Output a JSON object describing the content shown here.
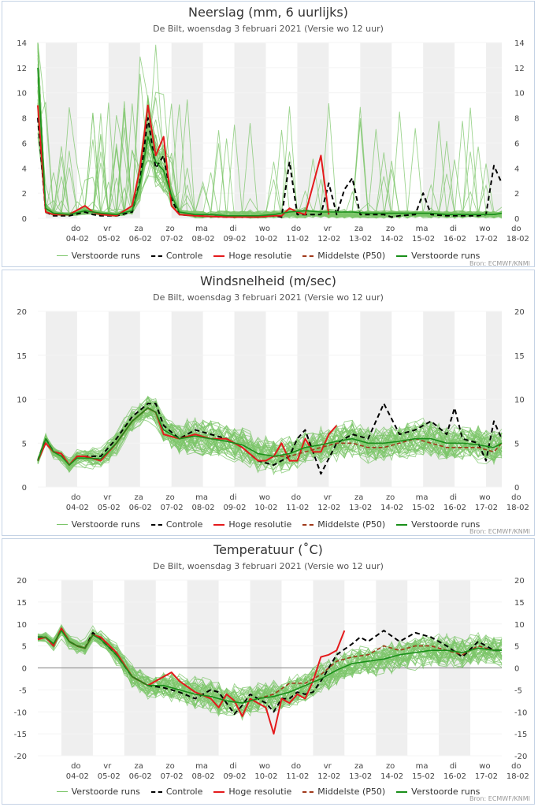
{
  "legend": {
    "items": [
      {
        "label": "Verstoorde runs",
        "color": "#7cc56a",
        "style": "solid-thin"
      },
      {
        "label": "Controle",
        "color": "#000000",
        "style": "dashed"
      },
      {
        "label": "Hoge resolutie",
        "color": "#e41a1c",
        "style": "solid"
      },
      {
        "label": "Middelste (P50)",
        "color": "#a0391a",
        "style": "dashed"
      },
      {
        "label": "Verstoorde runs",
        "color": "#1a8f1a",
        "style": "solid"
      }
    ]
  },
  "source": "Bron: ECMWF/KNMI",
  "chart_data": [
    {
      "type": "line",
      "title": "Neerslag (mm, 6 uurlijks)",
      "subtitle": "De Bilt, woensdag 3 februari 2021 (Versie wo 12 uur)",
      "x_ticks": [
        [
          "do",
          "04-02"
        ],
        [
          "vr",
          "05-02"
        ],
        [
          "za",
          "06-02"
        ],
        [
          "zo",
          "07-02"
        ],
        [
          "ma",
          "08-02"
        ],
        [
          "di",
          "09-02"
        ],
        [
          "wo",
          "10-02"
        ],
        [
          "do",
          "11-02"
        ],
        [
          "vr",
          "12-02"
        ],
        [
          "za",
          "13-02"
        ],
        [
          "zo",
          "14-02"
        ],
        [
          "ma",
          "15-02"
        ],
        [
          "di",
          "16-02"
        ],
        [
          "wo",
          "17-02"
        ],
        [
          "do",
          "18-02"
        ]
      ],
      "x_range_days": [
        0,
        14.75
      ],
      "ylim": [
        0,
        14
      ],
      "yticks": [
        0,
        2,
        4,
        6,
        8,
        10,
        12,
        14
      ],
      "zero_line": false,
      "series": [
        {
          "name": "Controle",
          "x": [
            0,
            0.25,
            0.5,
            1,
            1.5,
            1.75,
            2,
            2.5,
            3,
            3.25,
            3.5,
            3.75,
            4,
            4.25,
            4.5,
            5,
            6,
            7,
            7.5,
            7.75,
            8,
            8.25,
            8.5,
            9,
            9.25,
            9.5,
            9.75,
            10,
            10.25,
            10.5,
            11,
            11.25,
            11.5,
            12,
            12.25,
            12.5,
            13,
            13.25,
            13.5,
            14,
            14.25,
            14.5,
            14.75
          ],
          "values": [
            8,
            0.5,
            0.2,
            0.2,
            0.5,
            0.3,
            0.2,
            0.2,
            0.5,
            3,
            8,
            4,
            5,
            1.5,
            0.3,
            0.2,
            0.1,
            0.1,
            0.2,
            0.1,
            4.5,
            0.3,
            0.3,
            0.3,
            2.8,
            0.3,
            2.3,
            3.2,
            0.3,
            0.3,
            0.3,
            0.1,
            0.2,
            0.3,
            2,
            0.3,
            0.2,
            0.2,
            0.2,
            0.2,
            0.3,
            4.2,
            2.8
          ]
        },
        {
          "name": "Hoge resolutie",
          "x": [
            0,
            0.25,
            0.5,
            1,
            1.5,
            1.75,
            2,
            2.5,
            3,
            3.25,
            3.5,
            3.75,
            4,
            4.25,
            4.5,
            5,
            6,
            7,
            7.5,
            7.75,
            8,
            8.25,
            8.5,
            9,
            9.25
          ],
          "values": [
            9,
            0.5,
            0.3,
            0.3,
            1,
            0.5,
            0.3,
            0.2,
            1,
            4,
            9,
            5,
            6.5,
            1,
            0.3,
            0.2,
            0.1,
            0.1,
            0.2,
            0.2,
            0.8,
            0.5,
            0.3,
            5,
            0.3
          ]
        },
        {
          "name": "Verstoorde runs",
          "x": [
            0,
            0.25,
            0.5,
            1,
            1.5,
            2,
            2.5,
            3,
            3.25,
            3.5,
            3.75,
            4,
            4.25,
            4.5,
            5,
            5.5,
            6,
            6.5,
            7,
            7.5,
            8,
            8.5,
            9,
            9.5,
            10,
            10.5,
            11,
            11.5,
            12,
            12.5,
            13,
            13.5,
            14,
            14.5,
            14.75
          ],
          "values": [
            12,
            0.8,
            0.4,
            0.3,
            0.6,
            0.4,
            0.3,
            0.6,
            2.8,
            6.5,
            4.5,
            3.8,
            1.8,
            0.5,
            0.3,
            0.3,
            0.2,
            0.2,
            0.2,
            0.3,
            0.5,
            0.6,
            0.5,
            0.5,
            0.5,
            0.4,
            0.4,
            0.4,
            0.4,
            0.4,
            0.3,
            0.3,
            0.3,
            0.3,
            0.4
          ]
        },
        {
          "name": "Middelste (P50)",
          "x": [],
          "values": []
        }
      ]
    },
    {
      "type": "line",
      "title": "Windsnelheid (m/sec)",
      "subtitle": "De Bilt, woensdag 3 februari 2021 (Versie wo 12 uur)",
      "x_ticks": [
        [
          "do",
          "04-02"
        ],
        [
          "vr",
          "05-02"
        ],
        [
          "za",
          "06-02"
        ],
        [
          "zo",
          "07-02"
        ],
        [
          "ma",
          "08-02"
        ],
        [
          "di",
          "09-02"
        ],
        [
          "wo",
          "10-02"
        ],
        [
          "do",
          "11-02"
        ],
        [
          "vr",
          "12-02"
        ],
        [
          "za",
          "13-02"
        ],
        [
          "zo",
          "14-02"
        ],
        [
          "ma",
          "15-02"
        ],
        [
          "di",
          "16-02"
        ],
        [
          "wo",
          "17-02"
        ],
        [
          "do",
          "18-02"
        ]
      ],
      "x_range_days": [
        0,
        14.75
      ],
      "ylim": [
        0,
        20
      ],
      "yticks": [
        0,
        5,
        10,
        15,
        20
      ],
      "zero_line": false,
      "series": [
        {
          "name": "Controle",
          "x": [
            0,
            0.25,
            0.5,
            0.75,
            1,
            1.25,
            1.5,
            2,
            2.5,
            3,
            3.5,
            3.75,
            4,
            4.5,
            5,
            5.5,
            6,
            6.5,
            7,
            7.5,
            8,
            8.25,
            8.5,
            9,
            9.5,
            10,
            10.5,
            11,
            11.5,
            12,
            12.5,
            13,
            13.25,
            13.5,
            14,
            14.25,
            14.5,
            14.75
          ],
          "values": [
            3,
            5.5,
            4,
            3.8,
            2.5,
            3.5,
            3.5,
            3.5,
            5.5,
            8,
            9.5,
            9.5,
            7,
            5.5,
            6.5,
            6,
            5.5,
            4.5,
            3,
            2.5,
            3.5,
            5.5,
            6.5,
            1.5,
            5,
            6,
            5.5,
            9.5,
            6,
            6.5,
            7.5,
            6,
            9,
            5.5,
            5,
            3,
            7.5,
            5.5
          ]
        },
        {
          "name": "Hoge resolutie",
          "x": [
            0,
            0.25,
            0.5,
            0.75,
            1,
            1.25,
            1.5,
            2,
            2.5,
            3,
            3.5,
            3.75,
            4,
            4.5,
            5,
            5.5,
            6,
            6.5,
            7,
            7.25,
            7.5,
            7.75,
            8,
            8.25,
            8.5,
            8.75,
            9,
            9.25,
            9.5
          ],
          "values": [
            3,
            5,
            4,
            3.8,
            2.5,
            3.5,
            3.5,
            3,
            5,
            7.5,
            9,
            8.5,
            6,
            5.5,
            6,
            5.5,
            5.5,
            4.5,
            3,
            3,
            3.5,
            5,
            3,
            3,
            5.5,
            4,
            4,
            6,
            7
          ]
        },
        {
          "name": "Middelste (P50)",
          "x": [
            7.5,
            8,
            8.5,
            9,
            9.5,
            10,
            10.5,
            11,
            11.5,
            12,
            12.5,
            13,
            13.5,
            14,
            14.5,
            14.75
          ],
          "values": [
            3.5,
            3.5,
            4,
            4.5,
            5,
            5,
            4.5,
            4.5,
            5,
            5.5,
            5,
            4.5,
            4.5,
            4.5,
            4,
            5
          ]
        },
        {
          "name": "Verstoorde runs",
          "x": [
            0,
            0.25,
            0.5,
            0.75,
            1,
            1.25,
            1.5,
            2,
            2.5,
            3,
            3.5,
            3.75,
            4,
            4.5,
            5,
            5.5,
            6,
            6.5,
            7,
            7.5,
            8,
            8.5,
            9,
            9.5,
            10,
            10.5,
            11,
            11.5,
            12,
            12.5,
            13,
            13.5,
            14,
            14.5,
            14.75
          ],
          "values": [
            3,
            5.5,
            4,
            3.5,
            2.5,
            3.3,
            3.3,
            3.2,
            5,
            7.5,
            9,
            8.5,
            6.5,
            5.5,
            5.8,
            5.5,
            5.2,
            4.8,
            3.8,
            3.5,
            3.8,
            4.5,
            4.8,
            5.2,
            5.5,
            5,
            5,
            5.2,
            5.5,
            5.5,
            5,
            5,
            4.8,
            4.5,
            5
          ]
        }
      ]
    },
    {
      "type": "line",
      "title": "Temperatuur (˚C)",
      "subtitle": "De Bilt, woensdag 3 februari 2021 (Versie wo 12 uur)",
      "x_ticks": [
        [
          "do",
          "04-02"
        ],
        [
          "vr",
          "05-02"
        ],
        [
          "za",
          "06-02"
        ],
        [
          "zo",
          "07-02"
        ],
        [
          "ma",
          "08-02"
        ],
        [
          "di",
          "09-02"
        ],
        [
          "wo",
          "10-02"
        ],
        [
          "do",
          "11-02"
        ],
        [
          "vr",
          "12-02"
        ],
        [
          "za",
          "13-02"
        ],
        [
          "zo",
          "14-02"
        ],
        [
          "ma",
          "15-02"
        ],
        [
          "di",
          "16-02"
        ],
        [
          "wo",
          "17-02"
        ],
        [
          "do",
          "18-02"
        ]
      ],
      "x_range_days": [
        0,
        14.75
      ],
      "ylim": [
        -20,
        20
      ],
      "yticks": [
        -20,
        -15,
        -10,
        -5,
        0,
        5,
        10,
        15,
        20
      ],
      "zero_line": true,
      "series": [
        {
          "name": "Controle",
          "x": [
            0,
            0.25,
            0.5,
            0.75,
            1,
            1.25,
            1.5,
            1.75,
            2,
            2.5,
            3,
            3.5,
            4,
            4.5,
            5,
            5.5,
            5.75,
            6,
            6.25,
            6.5,
            6.75,
            7,
            7.25,
            7.5,
            7.75,
            8,
            8.25,
            8.5,
            8.75,
            9,
            9.5,
            10,
            10.25,
            10.5,
            11,
            11.5,
            12,
            12.5,
            13,
            13.5,
            14,
            14.5,
            14.75
          ],
          "values": [
            7,
            7,
            5,
            9,
            6,
            5,
            4.5,
            8,
            6.5,
            3,
            -2,
            -4,
            -4.5,
            -5.5,
            -7,
            -5,
            -5.5,
            -8,
            -10.5,
            -8.5,
            -6,
            -7,
            -8,
            -10,
            -7,
            -7,
            -5.5,
            -6,
            -5.5,
            -3,
            3,
            5.5,
            7,
            6,
            8.5,
            6,
            8,
            7,
            5,
            2.5,
            6,
            4,
            4
          ]
        },
        {
          "name": "Hoge resolutie",
          "x": [
            0,
            0.25,
            0.5,
            0.75,
            1,
            1.25,
            1.5,
            1.75,
            2,
            2.5,
            3,
            3.5,
            4,
            4.25,
            4.5,
            5,
            5.5,
            5.75,
            6,
            6.25,
            6.5,
            6.75,
            7,
            7.25,
            7.5,
            7.75,
            8,
            8.25,
            8.5,
            8.75,
            9,
            9.25,
            9.5,
            9.75
          ],
          "values": [
            6.5,
            7,
            5,
            9,
            6,
            5,
            4.5,
            7.5,
            7,
            3.5,
            -2,
            -4,
            -2,
            -1,
            -3,
            -5.5,
            -7,
            -9,
            -6,
            -7.5,
            -11,
            -7,
            -8,
            -9,
            -15,
            -7,
            -8,
            -6,
            -7,
            -3,
            2.5,
            3,
            4,
            8.5
          ]
        },
        {
          "name": "Middelste (P50)",
          "x": [
            7,
            7.5,
            8,
            8.5,
            9,
            9.5,
            10,
            10.5,
            11,
            11.5,
            12,
            12.5,
            13,
            13.5,
            14,
            14.5,
            14.75
          ],
          "values": [
            -7,
            -6,
            -3.5,
            -3.5,
            -1.5,
            1.5,
            2.5,
            3,
            5,
            4,
            5,
            5,
            4,
            3,
            5,
            4,
            4
          ]
        },
        {
          "name": "Verstoorde runs",
          "x": [
            0,
            0.25,
            0.5,
            0.75,
            1,
            1.25,
            1.5,
            1.75,
            2,
            2.5,
            3,
            3.5,
            4,
            4.5,
            5,
            5.5,
            6,
            6.5,
            7,
            7.5,
            8,
            8.5,
            9,
            9.5,
            10,
            10.5,
            11,
            11.5,
            12,
            12.5,
            13,
            13.5,
            14,
            14.5,
            14.75
          ],
          "values": [
            7,
            7,
            5.5,
            8.5,
            6,
            5,
            4.5,
            7.5,
            6.5,
            3,
            -2,
            -4,
            -4,
            -5,
            -6,
            -6.5,
            -7.5,
            -8,
            -7,
            -6.5,
            -5.5,
            -4,
            -2.5,
            -0.5,
            1,
            1.5,
            2,
            3,
            3.5,
            4,
            4,
            3.5,
            4.5,
            4,
            4
          ]
        }
      ]
    }
  ]
}
